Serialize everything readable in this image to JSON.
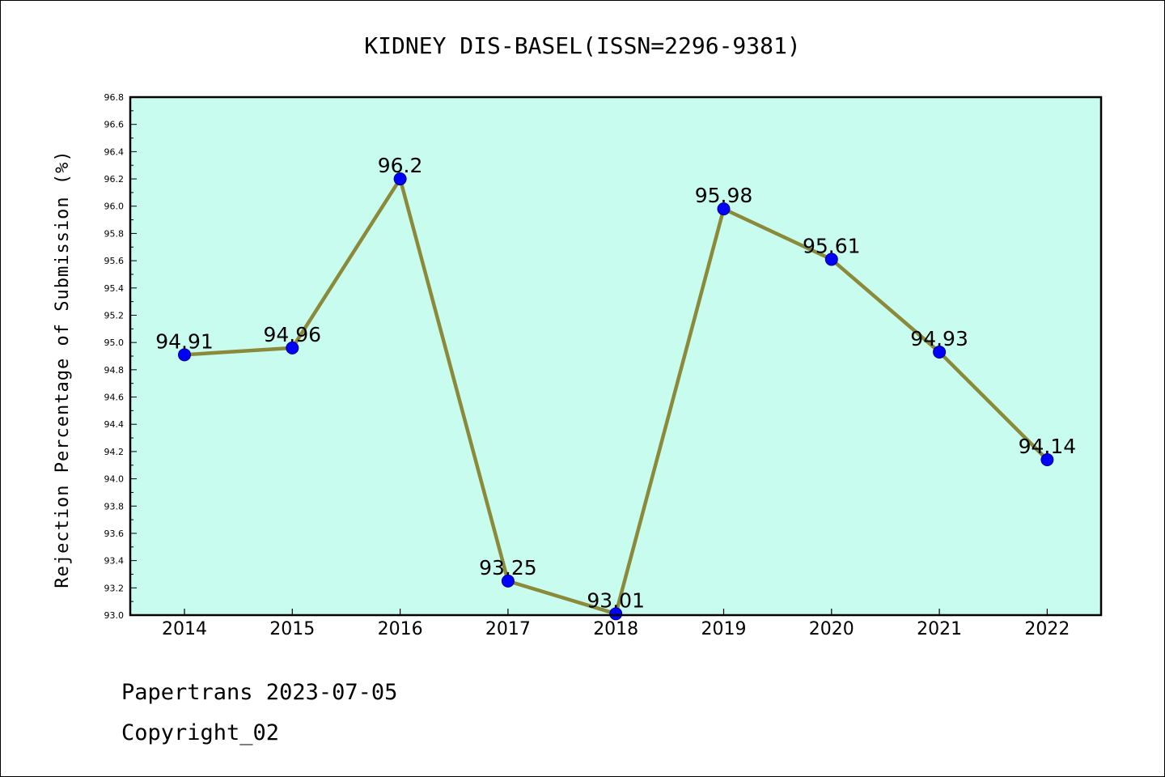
{
  "chart_data": {
    "type": "line",
    "title": "KIDNEY DIS-BASEL(ISSN=2296-9381)",
    "xlabel": "",
    "ylabel": "Rejection Percentage of Submission (%)",
    "categories": [
      "2014",
      "2015",
      "2016",
      "2017",
      "2018",
      "2019",
      "2020",
      "2021",
      "2022"
    ],
    "series": [
      {
        "values": [
          94.91,
          94.96,
          96.2,
          93.25,
          93.01,
          95.98,
          95.61,
          94.93,
          94.14
        ],
        "labels": [
          "94.91",
          "94.96",
          "96.2",
          "93.25",
          "93.01",
          "95.98",
          "95.61",
          "94.93",
          "94.14"
        ]
      }
    ],
    "ylim": [
      93.0,
      96.8
    ],
    "yticks": [
      "93.0",
      "93.2",
      "93.4",
      "93.6",
      "93.8",
      "94.0",
      "94.2",
      "94.4",
      "94.6",
      "94.8",
      "95.0",
      "95.2",
      "95.4",
      "95.6",
      "95.8",
      "96.0",
      "96.2",
      "96.4",
      "96.6",
      "96.8"
    ],
    "grid": false,
    "legend": "none",
    "colors": {
      "plot_background": "#c8fcee",
      "line": "#8b8a3a",
      "marker": "#0000ff"
    }
  },
  "footer": {
    "line1": "Papertrans 2023-07-05",
    "line2": "Copyright_02"
  }
}
